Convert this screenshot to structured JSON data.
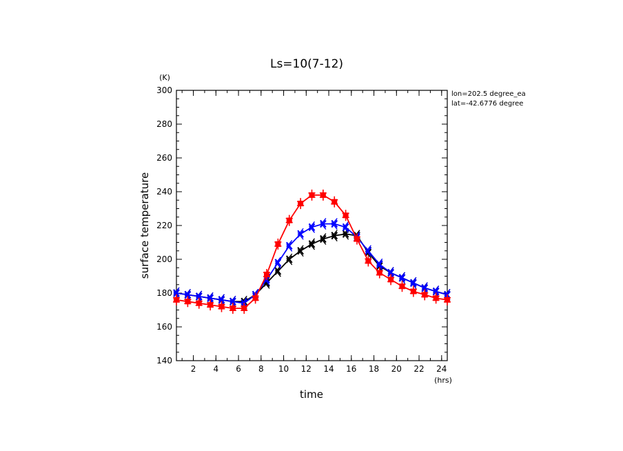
{
  "chart_data": {
    "type": "line",
    "title": "Ls=10(7-12)",
    "xlabel": "time",
    "ylabel": "surface temperature",
    "x_unit": "(hrs)",
    "y_unit": "(K)",
    "xlim": [
      0.5,
      24.5
    ],
    "ylim": [
      140,
      300
    ],
    "x_ticks": [
      2,
      4,
      6,
      8,
      10,
      12,
      14,
      16,
      18,
      20,
      22,
      24
    ],
    "y_ticks": [
      140,
      160,
      180,
      200,
      220,
      240,
      260,
      280,
      300
    ],
    "annotations": [
      "lon=202.5 degree_ea",
      "lat=-42.6776 degree"
    ],
    "x": [
      0.5,
      1.5,
      2.5,
      3.5,
      4.5,
      5.5,
      6.5,
      7.5,
      8.5,
      9.5,
      10.5,
      11.5,
      12.5,
      13.5,
      14.5,
      15.5,
      16.5,
      17.5,
      18.5,
      19.5,
      20.5,
      21.5,
      22.5,
      23.5,
      24.5
    ],
    "series": [
      {
        "color": "#000000",
        "marker": "x",
        "values": [
          180,
          179,
          178,
          177,
          176,
          175,
          175,
          179,
          186,
          193,
          200,
          205,
          209,
          212,
          214,
          215,
          214,
          204,
          196,
          192,
          189,
          186,
          183,
          181,
          179
        ]
      },
      {
        "color": "#0000ff",
        "marker": "x",
        "values": [
          180,
          179,
          178,
          177,
          176,
          175,
          174,
          179,
          188,
          198,
          208,
          215,
          219,
          221,
          221,
          219,
          213,
          205,
          197,
          192,
          189,
          186,
          183,
          181,
          179
        ]
      },
      {
        "color": "#ff0000",
        "marker": "+",
        "values": [
          176,
          175,
          174,
          173,
          172,
          171,
          171,
          177,
          191,
          209,
          223,
          233,
          238,
          238,
          234,
          226,
          212,
          199,
          192,
          188,
          184,
          181,
          179,
          177,
          176
        ]
      }
    ]
  }
}
